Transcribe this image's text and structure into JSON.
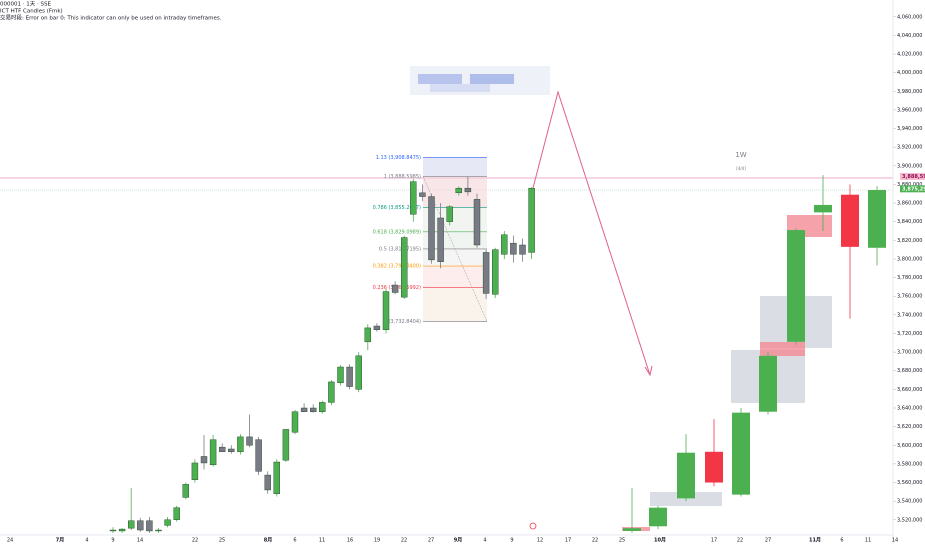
{
  "header": {
    "symbol": "000001 · 1天 · SSE",
    "indicator": "ICT HTF Candles (Fmk)",
    "error": "交易时段: Error on bar 0: This indicator can only be used on intraday timeframes."
  },
  "chart_data": {
    "type": "candlestick",
    "ylim": [
      3494000,
      4078000
    ],
    "yticks": [
      {
        "value": 3520000,
        "label": "3,520,000"
      },
      {
        "value": 3540000,
        "label": "3,540,000"
      },
      {
        "value": 3560000,
        "label": "3,560,000"
      },
      {
        "value": 3580000,
        "label": "3,580,000"
      },
      {
        "value": 3600000,
        "label": "3,600,000"
      },
      {
        "value": 3620000,
        "label": "3,620,000"
      },
      {
        "value": 3640000,
        "label": "3,640,000"
      },
      {
        "value": 3660000,
        "label": "3,660,000"
      },
      {
        "value": 3680000,
        "label": "3,680,000"
      },
      {
        "value": 3700000,
        "label": "3,700,000"
      },
      {
        "value": 3720000,
        "label": "3,720,000"
      },
      {
        "value": 3740000,
        "label": "3,740,000"
      },
      {
        "value": 3760000,
        "label": "3,760,000"
      },
      {
        "value": 3780000,
        "label": "3,780,000"
      },
      {
        "value": 3800000,
        "label": "3,800,000"
      },
      {
        "value": 3820000,
        "label": "3,820,000"
      },
      {
        "value": 3840000,
        "label": "3,840,000"
      },
      {
        "value": 3860000,
        "label": "3,860,000"
      },
      {
        "value": 3880000,
        "label": "3,880,000"
      },
      {
        "value": 3900000,
        "label": "3,900,000"
      },
      {
        "value": 3920000,
        "label": "3,920,000"
      },
      {
        "value": 3940000,
        "label": "3,940,000"
      },
      {
        "value": 3960000,
        "label": "3,960,000"
      },
      {
        "value": 3980000,
        "label": "3,980,000"
      },
      {
        "value": 4000000,
        "label": "4,000,000"
      },
      {
        "value": 4020000,
        "label": "4,020,000"
      },
      {
        "value": 4040000,
        "label": "4,040,000"
      },
      {
        "value": 4060000,
        "label": "4,060,000"
      }
    ],
    "x_labels": [
      "24",
      "7月",
      "4",
      "9",
      "14",
      "22",
      "25",
      "8月",
      "6",
      "11",
      "16",
      "19",
      "22",
      "27",
      "9月",
      "4",
      "9",
      "12",
      "17",
      "22",
      "25",
      "10月",
      "17",
      "22",
      "27",
      "11月",
      "6",
      "11",
      "14"
    ],
    "daily": {
      "up_color": "#4caf50",
      "down_color": "#787b86",
      "open": [
        3508000,
        3508000,
        3511000,
        3519000,
        3519000,
        3508000,
        3514000,
        3520000,
        3544000,
        3563000,
        3588000,
        3579000,
        3598000,
        3596000,
        3593000,
        3609000,
        3606000,
        3568000,
        3548000,
        3584000,
        3614000,
        3640000,
        3640000,
        3636000,
        3646000,
        3667000,
        3684000,
        3660000,
        3711000,
        3728000,
        3724000,
        3772000,
        3759000,
        3848000,
        3871000,
        3867000,
        3844000,
        3840000,
        3871000,
        3876000,
        3864000,
        3807000,
        3762000,
        3805000,
        3817000,
        3815000,
        3807000
      ],
      "high": [
        3512000,
        3511000,
        3554000,
        3522000,
        3523000,
        3511000,
        3523000,
        3535000,
        3560000,
        3585000,
        3611000,
        3611000,
        3602000,
        3600000,
        3612000,
        3633000,
        3609000,
        3572000,
        3585000,
        3617000,
        3638000,
        3645000,
        3644000,
        3648000,
        3670000,
        3686000,
        3687000,
        3700000,
        3730000,
        3731000,
        3768000,
        3776000,
        3825000,
        3886000,
        3880000,
        3870000,
        3860000,
        3858000,
        3878000,
        3888000,
        3870000,
        3810000,
        3812000,
        3830000,
        3825000,
        3822000,
        3877000
      ],
      "low": [
        3506000,
        3506000,
        3509000,
        3507000,
        3506000,
        3506000,
        3512000,
        3518000,
        3542000,
        3560000,
        3574000,
        3577000,
        3594000,
        3591000,
        3590000,
        3598000,
        3568000,
        3548000,
        3545000,
        3582000,
        3612000,
        3636000,
        3635000,
        3634000,
        3643000,
        3664000,
        3660000,
        3657000,
        3702000,
        3722000,
        3720000,
        3762000,
        3757000,
        3840000,
        3862000,
        3795000,
        3790000,
        3836000,
        3868000,
        3868000,
        3812000,
        3757000,
        3758000,
        3800000,
        3796000,
        3797000,
        3800000
      ],
      "close": [
        3509000,
        3510000,
        3519000,
        3509000,
        3508000,
        3509000,
        3520000,
        3533000,
        3558000,
        3581000,
        3581000,
        3606000,
        3593000,
        3593000,
        3609000,
        3600000,
        3572000,
        3552000,
        3582000,
        3617000,
        3636000,
        3636000,
        3636000,
        3646000,
        3668000,
        3684000,
        3663000,
        3696000,
        3726000,
        3724000,
        3765000,
        3764000,
        3823000,
        3883000,
        3867000,
        3799000,
        3797000,
        3856000,
        3876000,
        3872000,
        3815000,
        3763000,
        3810000,
        3826000,
        3805000,
        3805000,
        3876000
      ]
    },
    "weekly": {
      "up_color": "#4caf50",
      "down_color": "#f23645",
      "open": [
        3508000,
        3513000,
        3543000,
        3593000,
        3547000,
        3636000,
        3711000,
        3850000,
        3869000,
        3812000
      ],
      "high": [
        3554000,
        3535000,
        3612000,
        3628000,
        3640000,
        3700000,
        3833000,
        3890000,
        3880000,
        3878000
      ],
      "low": [
        3506000,
        3510000,
        3540000,
        3556000,
        3545000,
        3633000,
        3708000,
        3830000,
        3736000,
        3793000
      ],
      "close": [
        3511000,
        3533000,
        3592000,
        3560000,
        3635000,
        3696000,
        3831000,
        3858000,
        3813000,
        3874000
      ]
    },
    "htf_label": "1W",
    "htf_sublabel": "[4/4]",
    "fib": [
      {
        "label": "1.13 (3,908.8475)",
        "value": 3908848,
        "color": "#2962ff"
      },
      {
        "label": "1 (3,888.5985)",
        "value": 3888599,
        "color": "#787b86"
      },
      {
        "label": "0.786 (3,855.2637)",
        "value": 3855264,
        "color": "#089981"
      },
      {
        "label": "0.618 (3,829.0989)",
        "value": 3829099,
        "color": "#4caf50"
      },
      {
        "label": "0.5 (3,810.7195)",
        "value": 3810719,
        "color": "#787b86"
      },
      {
        "label": "0.382 (3,792.3400)",
        "value": 3792340,
        "color": "#ff9800"
      },
      {
        "label": "0.236 (3,769.5992)",
        "value": 3769600,
        "color": "#f23645"
      },
      {
        "label": "0 (3,732.8404)",
        "value": 3732840,
        "color": "#787b86"
      }
    ],
    "price_labels": [
      {
        "value": 3888590,
        "label": "3,888,590",
        "color": "#f8bbd0"
      },
      {
        "value": 3875290,
        "label": "3,875,290",
        "color": "#4caf50"
      }
    ]
  }
}
